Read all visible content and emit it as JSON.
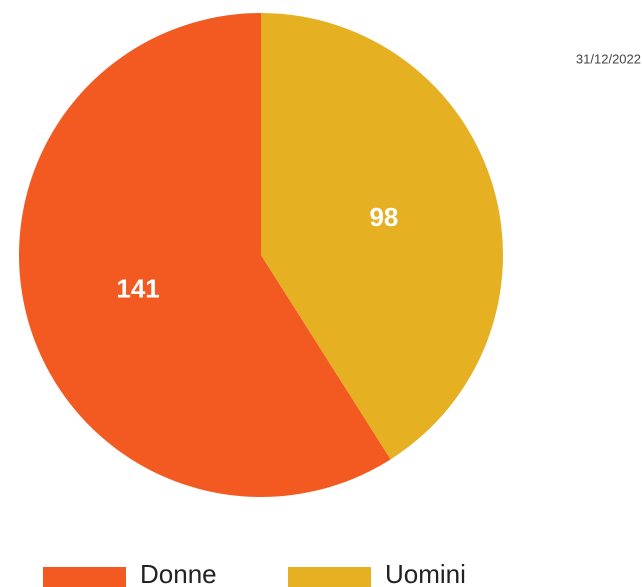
{
  "chart_data": {
    "type": "pie",
    "date": "31/12/2022",
    "categories": [
      "Donne",
      "Uomini"
    ],
    "values": [
      141,
      98
    ],
    "colors": [
      "#f25a22",
      "#e5b123"
    ],
    "legend": "bottom"
  }
}
